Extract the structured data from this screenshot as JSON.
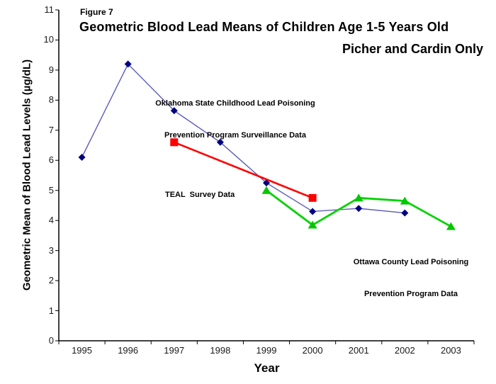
{
  "figure_label": "Figure 7",
  "title": {
    "line1": "Geometric Blood Lead Means of Children Age 1-5 Years Old",
    "line2": "Picher and Cardin Only"
  },
  "chart_data": {
    "type": "line",
    "title": "Geometric Blood Lead Means of Children Age 1-5 Years Old — Picher and Cardin Only",
    "xlabel": "Year",
    "ylabel": "Geometric Mean of Blood Lead Levels (µg/dL)",
    "categories": [
      "1995",
      "1996",
      "1997",
      "1998",
      "1999",
      "2000",
      "2001",
      "2002",
      "2003"
    ],
    "ylim": [
      0,
      11
    ],
    "y_tick_step": 1,
    "grid": false,
    "legend_position": "none (labels annotated inline on plot)",
    "series": [
      {
        "name": "Oklahoma State Childhood Lead Poisoning Prevention Program Surveillance Data",
        "marker": "diamond",
        "line_color": "#5c5cb8",
        "marker_color": "#000080",
        "values": [
          6.1,
          9.2,
          7.65,
          6.6,
          5.25,
          4.3,
          4.4,
          4.25,
          null
        ]
      },
      {
        "name": "TEAL Survey Data",
        "marker": "square",
        "line_color": "#ff0000",
        "marker_color": "#ff0000",
        "values": [
          null,
          null,
          6.6,
          null,
          null,
          4.75,
          null,
          null,
          null
        ]
      },
      {
        "name": "Ottawa County Lead Poisoning Prevention Program Data",
        "marker": "triangle",
        "line_color": "#00d300",
        "marker_color": "#00c800",
        "values": [
          null,
          null,
          null,
          null,
          5.0,
          3.85,
          4.75,
          4.65,
          3.8
        ]
      }
    ]
  },
  "annotations": {
    "oklahoma": {
      "line1": "Oklahoma State Childhood Lead Poisoning",
      "line2": "Prevention Program Surveillance Data"
    },
    "teal": {
      "line1": "TEAL  Survey Data"
    },
    "ottawa": {
      "line1": "Ottawa County Lead Poisoning",
      "line2": "Prevention Program Data"
    }
  }
}
